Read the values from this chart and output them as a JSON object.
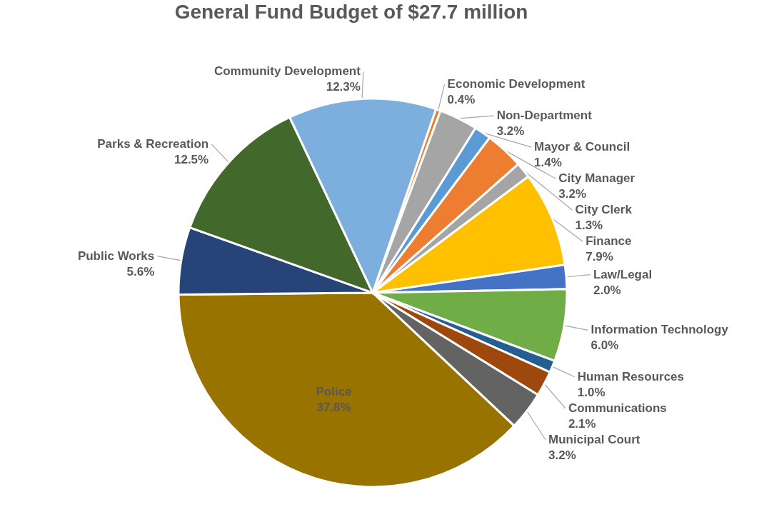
{
  "chart_data": {
    "type": "pie",
    "title": "General Fund Budget of $27.7 million",
    "categories": [
      "Economic Development",
      "Non-Department",
      "Mayor & Council",
      "City Manager",
      "City Clerk",
      "Finance",
      "Law/Legal",
      "Information Technology",
      "Human Resources",
      "Communications",
      "Municipal Court",
      "Police",
      "Public Works",
      "Parks & Recreation",
      "Community Development"
    ],
    "values": [
      0.4,
      3.2,
      1.4,
      3.2,
      1.3,
      7.9,
      2.0,
      6.0,
      1.0,
      2.1,
      3.2,
      37.8,
      5.6,
      12.5,
      12.3
    ],
    "value_labels": [
      "0.4%",
      "3.2%",
      "1.4%",
      "3.2%",
      "1.3%",
      "7.9%",
      "2.0%",
      "6.0%",
      "1.0%",
      "2.1%",
      "3.2%",
      "37.8%",
      "5.6%",
      "12.5%",
      "12.3%"
    ],
    "colors": [
      "#ed7d31",
      "#a5a5a5",
      "#5b9bd5",
      "#ed7d31",
      "#a5a5a5",
      "#ffc000",
      "#4472c4",
      "#70ad47",
      "#255e91",
      "#9e480e",
      "#636363",
      "#997300",
      "#264478",
      "#43682b",
      "#7cafdd"
    ]
  }
}
